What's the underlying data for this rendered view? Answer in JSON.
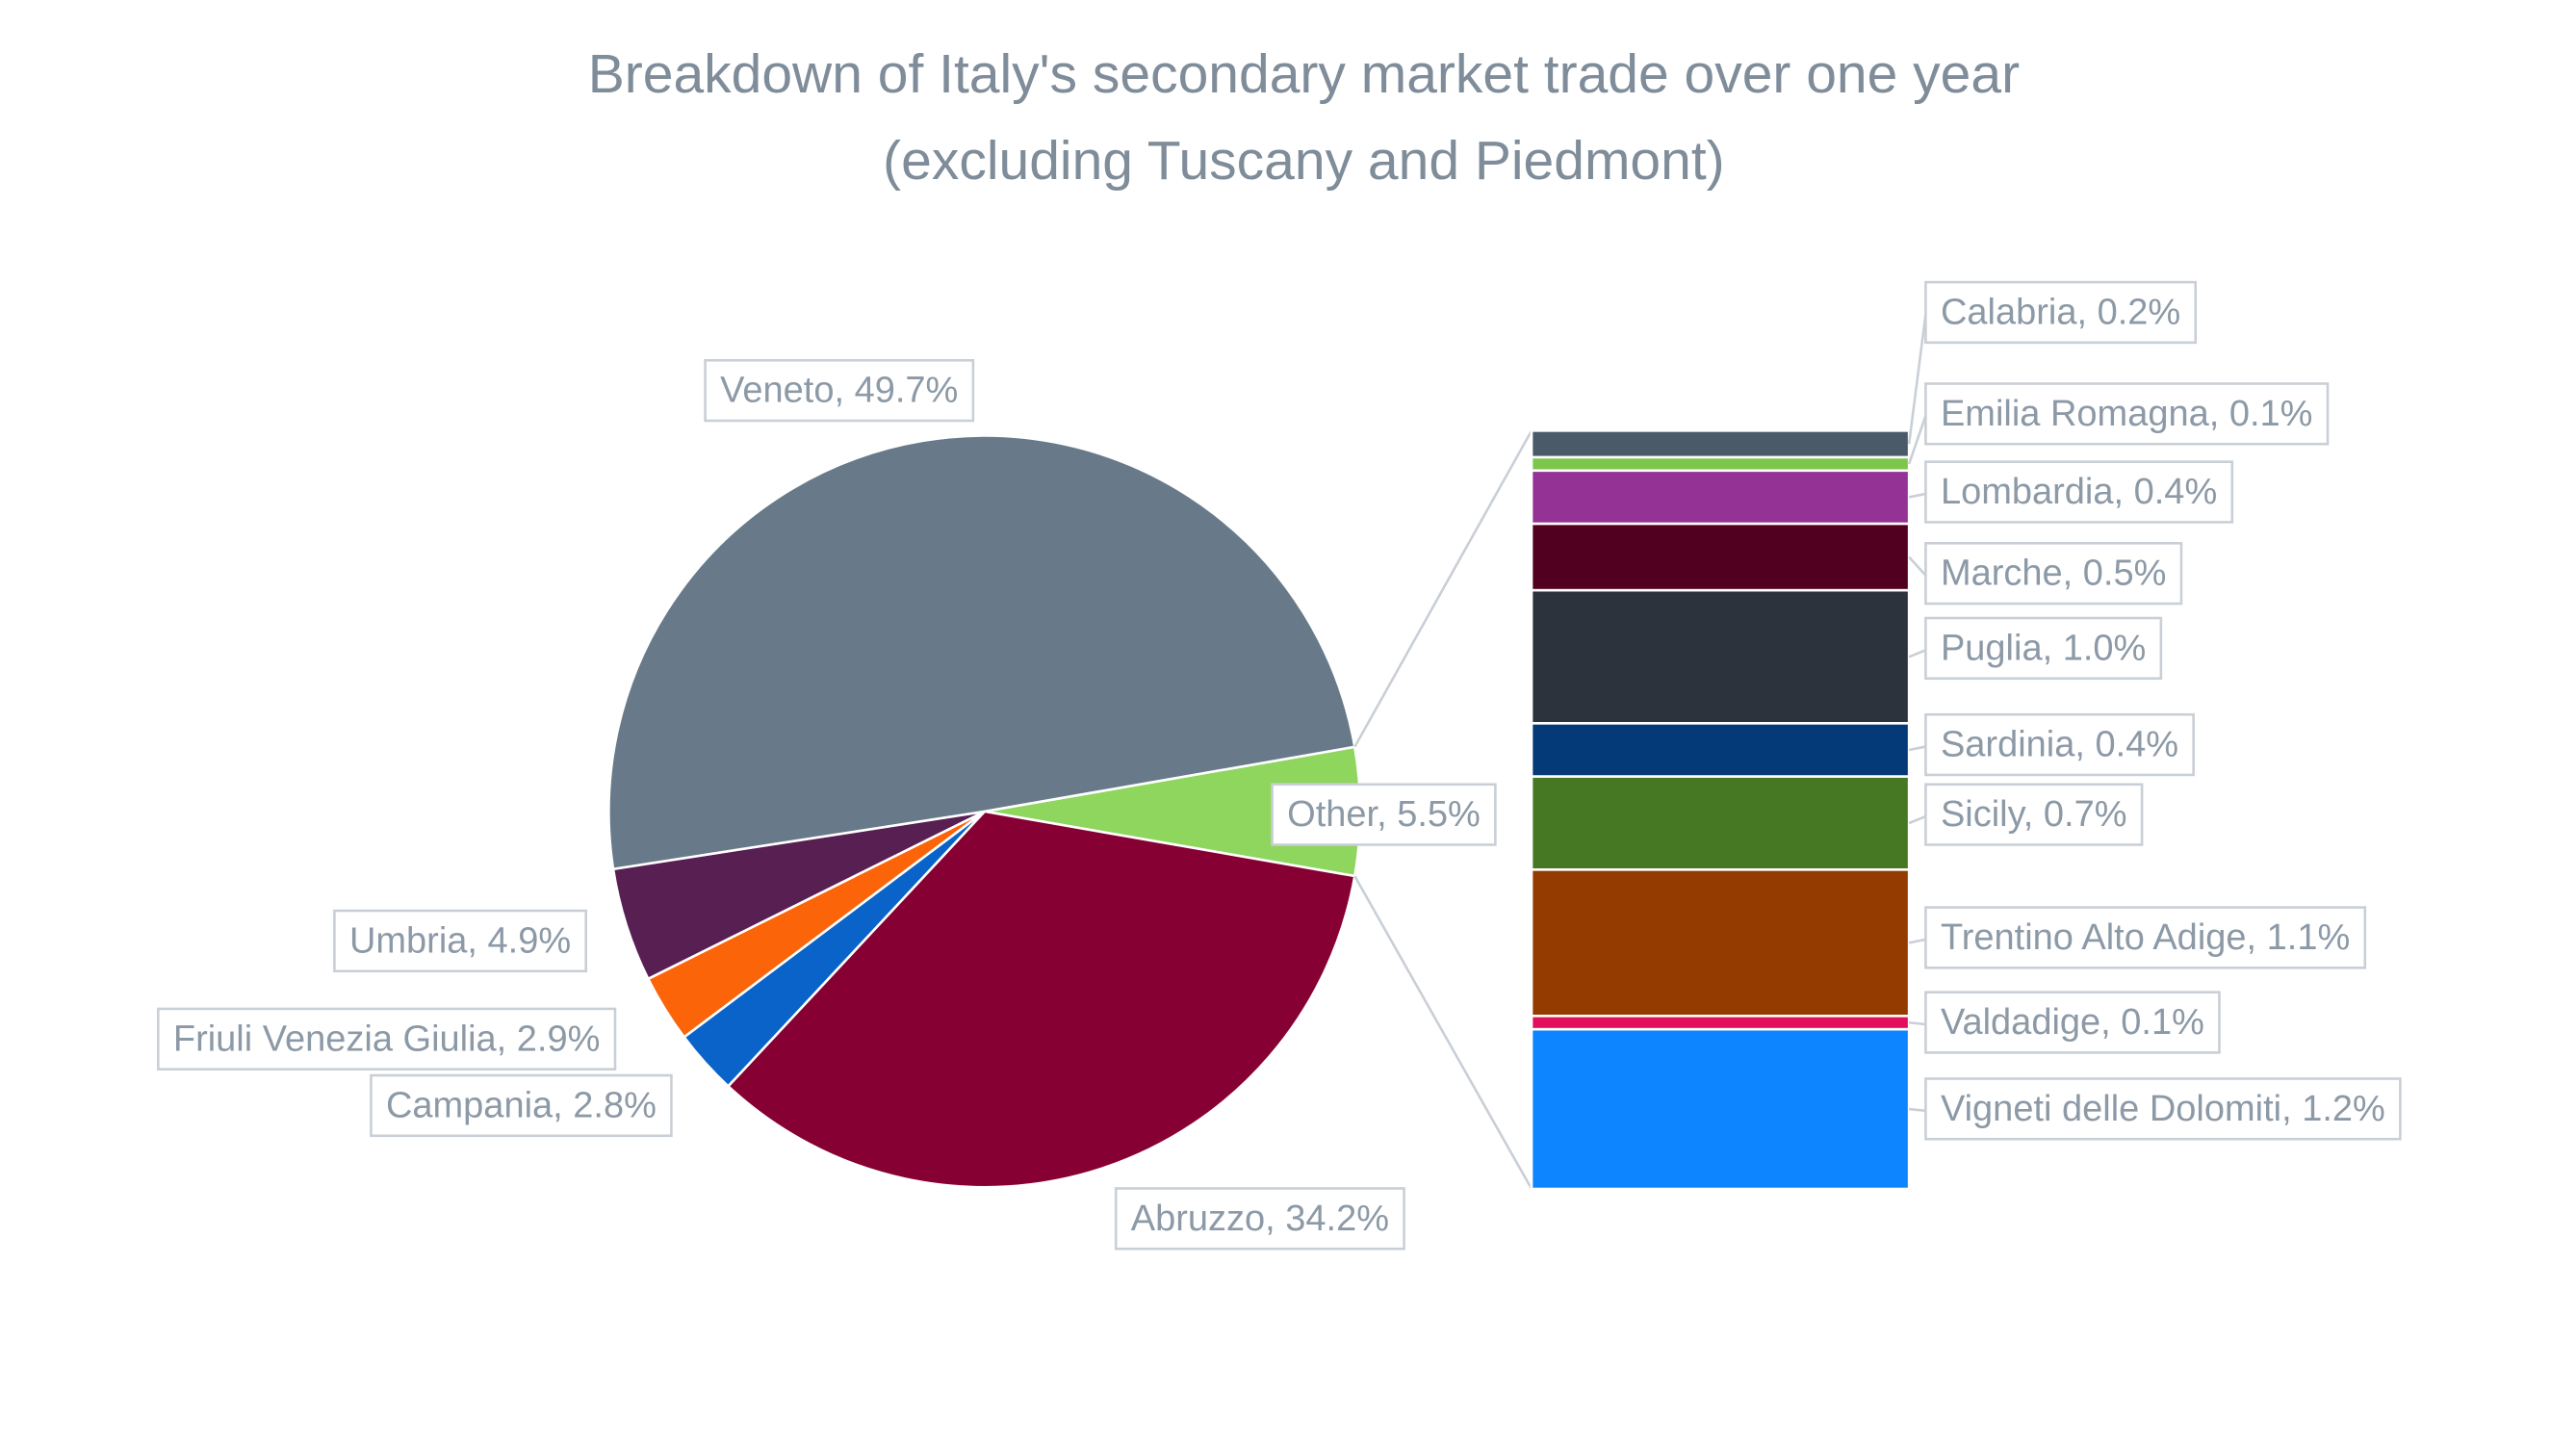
{
  "chart_data": [
    {
      "type": "pie",
      "title": [
        "Breakdown of Italy's secondary market trade over one year",
        "(excluding Tuscany and Piedmont)"
      ],
      "values": [
        5.5,
        34.2,
        2.8,
        2.9,
        4.9,
        49.7
      ],
      "value_labels": [
        "Other, 5.5%",
        "Abruzzo, 34.2%",
        "Campania, 2.8%",
        "Friuli Venezia Giulia, 2.9%",
        "Umbria, 4.9%",
        "Veneto, 49.7%"
      ],
      "colors": [
        "#8fd65e",
        "#870033",
        "#0a63c8",
        "#fb6408",
        "#581f53",
        "#687a89"
      ]
    },
    {
      "type": "stacked-column",
      "values": [
        0.2,
        0.1,
        0.4,
        0.5,
        1.0,
        0.4,
        0.7,
        1.1,
        0.1,
        1.2
      ],
      "value_labels": [
        "Calabria, 0.2%",
        "Emilia Romagna, 0.1%",
        "Lombardia, 0.4%",
        "Marche, 0.5%",
        "Puglia, 1.0%",
        "Sardinia, 0.4%",
        "Sicily, 0.7%",
        "Trentino Alto Adige, 1.1%",
        "Valdadige, 0.1%",
        "Vigneti delle Dolomiti, 1.2%"
      ],
      "colors": [
        "#4a5a68",
        "#7ec64a",
        "#943395",
        "#51001f",
        "#2d333d",
        "#043a77",
        "#467823",
        "#943c00",
        "#e0105a",
        "#0c85ff"
      ]
    }
  ]
}
